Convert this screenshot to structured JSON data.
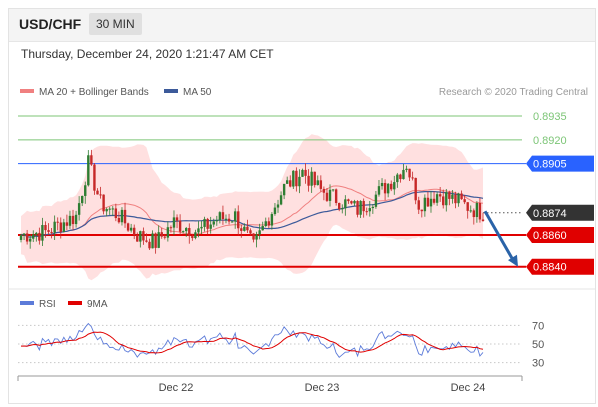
{
  "header": {
    "pair": "USD/CHF",
    "timeframe": "30 MIN"
  },
  "datetime": "Thursday, December 24, 2020 1:21:47 AM CET",
  "legend": [
    {
      "label": "MA 20 + Bollinger Bands",
      "color": "#f08080"
    },
    {
      "label": "MA 50",
      "color": "#3c5a9a"
    }
  ],
  "credit": "Research © 2020 Trading Central",
  "colors": {
    "up": "#2e7d32",
    "down": "#c62828",
    "target": "#2a63a8",
    "support": "#e00000",
    "resistance_green": "#7cc576",
    "resistance_blue": "#2962ff",
    "band": "#ffd6d6"
  },
  "chart_data": [
    {
      "type": "candlestick",
      "ylim": [
        0.8831,
        0.8947
      ],
      "x_ticks": [
        "Dec 22",
        "Dec 23",
        "Dec 24"
      ],
      "levels": [
        {
          "value": "0.8935",
          "kind": "resistance"
        },
        {
          "value": "0.8920",
          "kind": "resistance"
        },
        {
          "value": "0.8905",
          "kind": "pivot"
        },
        {
          "value": "0.8874",
          "kind": "last"
        },
        {
          "value": "0.8860",
          "kind": "support"
        },
        {
          "value": "0.8840",
          "kind": "support"
        }
      ],
      "arrow": {
        "from": 0.8875,
        "to": 0.884
      },
      "series": [
        {
          "name": "MA 20 + Bollinger Bands",
          "type": "band"
        },
        {
          "name": "MA 50",
          "type": "line"
        }
      ]
    },
    {
      "type": "line",
      "ylim": [
        20,
        80
      ],
      "y_ticks": [
        "70",
        "50",
        "30"
      ],
      "series": [
        {
          "name": "RSI",
          "color": "#5c7bd9"
        },
        {
          "name": "9MA",
          "color": "#e00000"
        }
      ]
    }
  ]
}
